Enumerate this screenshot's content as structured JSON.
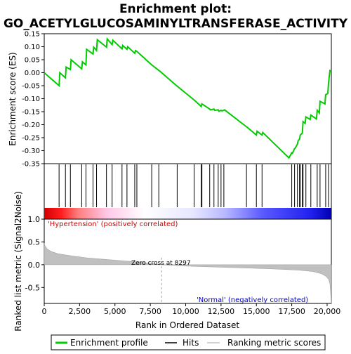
{
  "title": "Enrichment plot:",
  "subtitle": "GO_ACETYLGLUCOSAMINYLTRANSFERASE_ACTIVITY",
  "colors": {
    "enrichment_line": "#00cc00",
    "hit": "#000000",
    "metric_fill": "#c0c0c0",
    "pos_label": "#cc0000",
    "neg_label": "#0000cc",
    "zero_cross_line": "#a0a0a0"
  },
  "legend": [
    {
      "label": "Enrichment profile",
      "icon": "green-line"
    },
    {
      "label": "Hits",
      "icon": "black-line"
    },
    {
      "label": "Ranking metric scores",
      "icon": "gray-line"
    }
  ],
  "annotations": {
    "positive": "'Hypertension' (positively correlated)",
    "negative": "'Normal' (negatively correlated)",
    "zero_cross": "Zero cross at 8297"
  },
  "chart_data": [
    {
      "type": "line",
      "panel": "enrichment",
      "ylabel": "Enrichment score (ES)",
      "ylim": [
        -0.35,
        0.15
      ],
      "xlim": [
        0,
        20300
      ],
      "yticks": [
        0.15,
        0.1,
        0.05,
        0.0,
        -0.05,
        -0.1,
        -0.15,
        -0.2,
        -0.25,
        -0.3,
        -0.35
      ],
      "ytick_labels": [
        "0.15",
        "0.10",
        "0.05",
        "0.00",
        "-0.05",
        "-0.10",
        "-0.15",
        "-0.20",
        "-0.25",
        "-0.30",
        "-0.35"
      ],
      "grid": false,
      "series": [
        {
          "x": [
            0,
            1050,
            1100,
            1500,
            1550,
            1850,
            1900,
            2650,
            2700,
            2950,
            3000,
            3450,
            3500,
            3700,
            3750,
            4400,
            4450,
            4800,
            4850,
            5500,
            5550,
            5850,
            5900,
            6400,
            6450,
            6550,
            7600,
            8200,
            8297,
            9400,
            10600,
            11100,
            11150,
            11700,
            11750,
            12000,
            12050,
            12300,
            12350,
            12500,
            12550,
            12700,
            12750,
            14300,
            14350,
            15000,
            15050,
            15400,
            15450,
            17300,
            17500,
            17550,
            17700,
            17750,
            17900,
            17950,
            18050,
            18100,
            18250,
            18300,
            18450,
            18500,
            18800,
            18850,
            19250,
            19300,
            19450,
            19500,
            19850,
            19900,
            20050,
            20100,
            20200,
            20300
          ],
          "y": [
            0.0,
            -0.05,
            0.0,
            -0.02,
            0.022,
            0.012,
            0.05,
            0.015,
            0.042,
            0.03,
            0.09,
            0.072,
            0.098,
            0.085,
            0.127,
            0.098,
            0.13,
            0.108,
            0.125,
            0.092,
            0.105,
            0.09,
            0.1,
            0.075,
            0.085,
            0.082,
            0.03,
            0.005,
            0.0,
            -0.052,
            -0.105,
            -0.13,
            -0.12,
            -0.14,
            -0.143,
            -0.14,
            -0.145,
            -0.143,
            -0.148,
            -0.145,
            -0.147,
            -0.145,
            -0.143,
            -0.208,
            -0.21,
            -0.24,
            -0.225,
            -0.24,
            -0.23,
            -0.328,
            -0.308,
            -0.31,
            -0.292,
            -0.29,
            -0.275,
            -0.262,
            -0.255,
            -0.24,
            -0.232,
            -0.188,
            -0.195,
            -0.17,
            -0.18,
            -0.163,
            -0.178,
            -0.145,
            -0.155,
            -0.11,
            -0.12,
            -0.085,
            -0.08,
            -0.04,
            0.008,
            0.005
          ]
        }
      ]
    },
    {
      "type": "scatter",
      "panel": "hits",
      "x": [
        1050,
        1500,
        1850,
        2650,
        2950,
        3450,
        3700,
        4400,
        4800,
        5500,
        5850,
        6400,
        6550,
        7600,
        8100,
        9400,
        10600,
        11100,
        11150,
        11700,
        12000,
        12300,
        12500,
        12700,
        14300,
        15000,
        15400,
        17500,
        17700,
        17900,
        18050,
        18100,
        18250,
        18300,
        18500,
        18850,
        19300,
        19500,
        19900,
        20100
      ]
    },
    {
      "type": "heatmap",
      "panel": "rank-bar",
      "description_values": [
        "red",
        "pink",
        "white",
        "lavender",
        "blue"
      ]
    },
    {
      "type": "area",
      "panel": "ranked-metric",
      "xlabel": "Rank in Ordered Dataset",
      "ylabel": "Ranked list metric (Signal2Noise)",
      "ylim": [
        -0.85,
        1.0
      ],
      "xlim": [
        0,
        20300
      ],
      "yticks": [
        1.0,
        0.5,
        0.0,
        -0.5
      ],
      "ytick_labels": [
        "1.0",
        "0.5",
        "0.0",
        "-0.5"
      ],
      "xticks": [
        0,
        2500,
        5000,
        7500,
        10000,
        12500,
        15000,
        17500,
        20000
      ],
      "xtick_labels": [
        "0",
        "2,500",
        "5,000",
        "7,500",
        "10,000",
        "12,500",
        "15,000",
        "17,500",
        "20,000"
      ],
      "x": [
        0,
        50,
        200,
        500,
        1000,
        2000,
        3000,
        5000,
        7000,
        8297,
        10000,
        13000,
        16000,
        18000,
        19000,
        19600,
        19900,
        20100,
        20200,
        20300
      ],
      "y": [
        0.47,
        0.42,
        0.35,
        0.29,
        0.24,
        0.19,
        0.15,
        0.1,
        0.05,
        0.0,
        -0.03,
        -0.06,
        -0.09,
        -0.12,
        -0.15,
        -0.2,
        -0.25,
        -0.32,
        -0.42,
        -0.85
      ],
      "zero_cross": 8297
    }
  ]
}
